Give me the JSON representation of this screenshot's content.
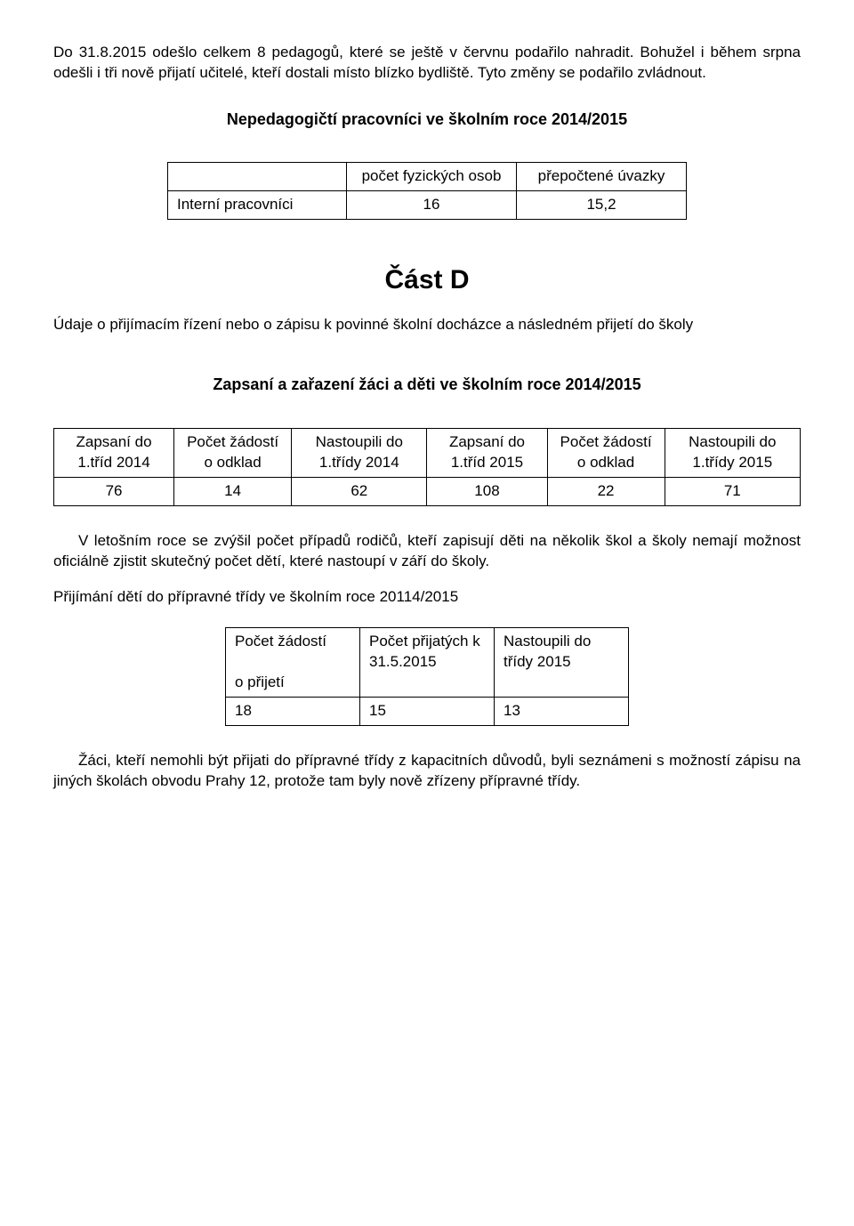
{
  "intro_para": "Do 31.8.2015 odešlo celkem 8 pedagogů, které se ještě v červnu podařilo nahradit. Bohužel i během srpna odešli i tři nově přijatí učitelé, kteří dostali místo blízko bydliště. Tyto změny se podařilo zvládnout.",
  "heading_nepedag": "Nepedagogičtí pracovníci ve školním roce 2014/2015",
  "table1": {
    "headers": [
      "",
      "počet fyzických osob",
      "přepočtené úvazky"
    ],
    "row": [
      "Interní pracovníci",
      "16",
      "15,2"
    ]
  },
  "part_heading": "Část D",
  "part_text": "Údaje o přijímacím řízení nebo o zápisu k povinné školní docházce a následném přijetí do školy",
  "heading_zapsani": "Zapsaní a zařazení žáci a děti ve školním roce 2014/2015",
  "table2": {
    "headers": [
      "Zapsaní do 1.tříd 2014",
      "Počet žádostí o odklad",
      "Nastoupili do 1.třídy 2014",
      "Zapsaní do 1.tříd 2015",
      "Počet žádostí o odklad",
      "Nastoupili do 1.třídy 2015"
    ],
    "row": [
      "76",
      "14",
      "62",
      "108",
      "22",
      "71"
    ]
  },
  "para_letosnim": "V letošním roce se zvýšil počet případů rodičů, kteří zapisují děti na několik škol a školy nemají možnost oficiálně zjistit skutečný počet dětí, které nastoupí v září do školy.",
  "para_prijimani": "Přijímání dětí do přípravné třídy ve školním roce 20114/2015",
  "table3": {
    "headers": [
      "Počet žádostí\no přijetí",
      "Počet přijatých k 31.5.2015",
      "Nastoupili do třídy 2015"
    ],
    "row": [
      "18",
      "15",
      "13"
    ]
  },
  "para_zaci": "Žáci, kteří nemohli být přijati do přípravné třídy z kapacitních důvodů, byli seznámeni s možností zápisu na jiných školách obvodu Prahy 12, protože tam byly nově zřízeny přípravné třídy."
}
